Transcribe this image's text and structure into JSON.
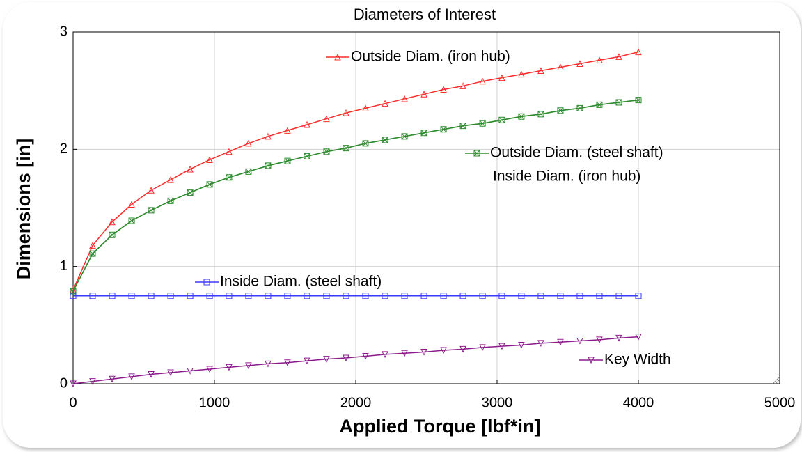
{
  "chart_data": {
    "type": "line",
    "title": "Diameters of Interest",
    "xlabel": "Applied Torque  [lbf*in]",
    "ylabel": "Dimensions [in]",
    "x": [
      0,
      138,
      276,
      414,
      552,
      690,
      828,
      966,
      1103,
      1241,
      1379,
      1517,
      1655,
      1793,
      1931,
      2069,
      2207,
      2345,
      2483,
      2621,
      2759,
      2897,
      3034,
      3172,
      3310,
      3448,
      3586,
      3724,
      3862,
      4000
    ],
    "series": [
      {
        "name": "Inside Diam. (iron hub)",
        "color": "#2e8b2e",
        "marker": "none",
        "values": [
          0.79,
          1.11,
          1.27,
          1.39,
          1.48,
          1.56,
          1.63,
          1.7,
          1.76,
          1.81,
          1.86,
          1.9,
          1.94,
          1.98,
          2.01,
          2.05,
          2.08,
          2.11,
          2.14,
          2.17,
          2.2,
          2.22,
          2.25,
          2.28,
          2.3,
          2.33,
          2.35,
          2.38,
          2.4,
          2.42
        ]
      },
      {
        "name": "Outside Diam. (iron hub)",
        "color": "#ff2a2a",
        "marker": "triangle-up",
        "values": [
          0.8,
          1.18,
          1.38,
          1.53,
          1.65,
          1.74,
          1.83,
          1.91,
          1.98,
          2.05,
          2.11,
          2.16,
          2.21,
          2.26,
          2.31,
          2.35,
          2.39,
          2.43,
          2.47,
          2.51,
          2.54,
          2.58,
          2.61,
          2.64,
          2.67,
          2.7,
          2.73,
          2.76,
          2.79,
          2.83
        ]
      },
      {
        "name": "Outside Diam. (steel shaft)",
        "color": "#2e8b2e",
        "marker": "box-x",
        "values": [
          0.79,
          1.11,
          1.27,
          1.39,
          1.48,
          1.56,
          1.63,
          1.7,
          1.76,
          1.81,
          1.86,
          1.9,
          1.94,
          1.98,
          2.01,
          2.05,
          2.08,
          2.11,
          2.14,
          2.17,
          2.2,
          2.22,
          2.25,
          2.28,
          2.3,
          2.33,
          2.35,
          2.38,
          2.4,
          2.42
        ]
      },
      {
        "name": "Inside Diam. (steel shaft)",
        "color": "#3a3aff",
        "marker": "square",
        "values": [
          0.75,
          0.75,
          0.75,
          0.75,
          0.75,
          0.75,
          0.75,
          0.75,
          0.75,
          0.75,
          0.75,
          0.75,
          0.75,
          0.75,
          0.75,
          0.75,
          0.75,
          0.75,
          0.75,
          0.75,
          0.75,
          0.75,
          0.75,
          0.75,
          0.75,
          0.75,
          0.75,
          0.75,
          0.75,
          0.75
        ]
      },
      {
        "name": "Key Width",
        "color": "#8b1a8b",
        "marker": "triangle-down",
        "values": [
          0,
          0.02,
          0.04,
          0.06,
          0.08,
          0.095,
          0.11,
          0.125,
          0.14,
          0.155,
          0.17,
          0.18,
          0.195,
          0.21,
          0.22,
          0.235,
          0.25,
          0.26,
          0.27,
          0.285,
          0.295,
          0.31,
          0.32,
          0.33,
          0.345,
          0.355,
          0.365,
          0.375,
          0.39,
          0.4
        ]
      }
    ],
    "xlim": [
      0,
      5000
    ],
    "xticks": [
      0,
      1000,
      2000,
      3000,
      4000,
      5000
    ],
    "ylim": [
      0,
      3
    ],
    "yticks": [
      0,
      1,
      2,
      3
    ],
    "grid": true
  }
}
